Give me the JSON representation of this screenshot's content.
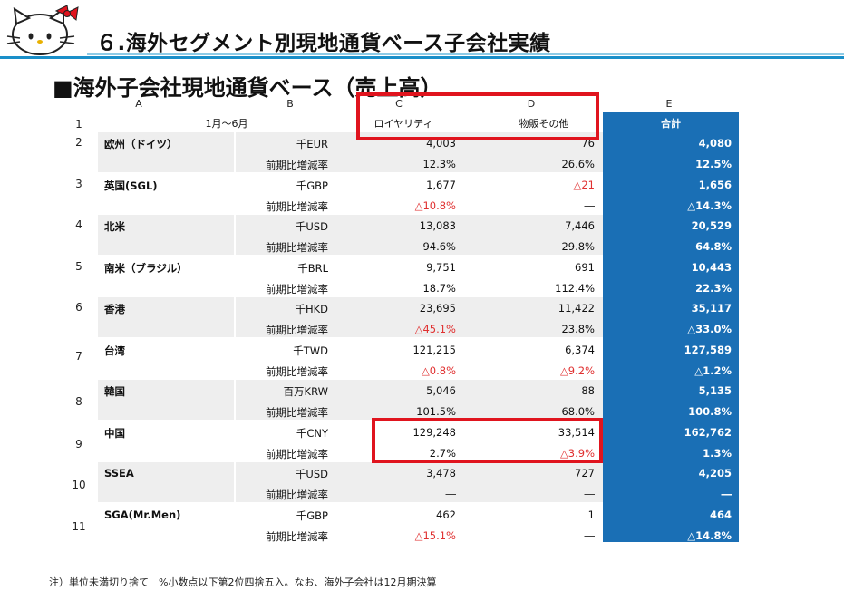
{
  "page": {
    "title": "６.海外セグメント別現地通貨ベース子会社実績",
    "section_title": "■海外子会社現地通貨ベース（売上高）",
    "footnote": "注）単位未満切り捨て　%小数点以下第2位四捨五入。なお、海外子会社は12月期決算"
  },
  "colors": {
    "accent_blue": "#1a6fb5",
    "negative": "#e03030",
    "highlight_box": "#e0141e",
    "title_rule": "#1a8fc9"
  },
  "table": {
    "column_letters": [
      "A",
      "B",
      "C",
      "D",
      "E"
    ],
    "header": {
      "period": "1月～6月",
      "col_c": "ロイヤリティ",
      "col_d": "物販その他",
      "col_e": "合計"
    },
    "row_numbers": [
      "1",
      "2",
      "3",
      "4",
      "5",
      "6",
      "7",
      "8",
      "9",
      "10",
      "11"
    ],
    "rows": [
      {
        "region": "欧州（ドイツ）",
        "unit": "千EUR",
        "c": "4,003",
        "d": "76",
        "e": "4,080",
        "rate_label": "前期比増減率",
        "rc": "12.3%",
        "rd": "26.6%",
        "re": "12.5%"
      },
      {
        "region": "英国(SGL)",
        "unit": "千GBP",
        "c": "1,677",
        "d": "△21",
        "e": "1,656",
        "rate_label": "前期比増減率",
        "rc": "△10.8%",
        "rd": "―",
        "re": "△14.3%"
      },
      {
        "region": "北米",
        "unit": "千USD",
        "c": "13,083",
        "d": "7,446",
        "e": "20,529",
        "rate_label": "前期比増減率",
        "rc": "94.6%",
        "rd": "29.8%",
        "re": "64.8%"
      },
      {
        "region": "南米（ブラジル）",
        "unit": "千BRL",
        "c": "9,751",
        "d": "691",
        "e": "10,443",
        "rate_label": "前期比増減率",
        "rc": "18.7%",
        "rd": "112.4%",
        "re": "22.3%"
      },
      {
        "region": "香港",
        "unit": "千HKD",
        "c": "23,695",
        "d": "11,422",
        "e": "35,117",
        "rate_label": "前期比増減率",
        "rc": "△45.1%",
        "rd": "23.8%",
        "re": "△33.0%"
      },
      {
        "region": "台湾",
        "unit": "千TWD",
        "c": "121,215",
        "d": "6,374",
        "e": "127,589",
        "rate_label": "前期比増減率",
        "rc": "△0.8%",
        "rd": "△9.2%",
        "re": "△1.2%"
      },
      {
        "region": "韓国",
        "unit": "百万KRW",
        "c": "5,046",
        "d": "88",
        "e": "5,135",
        "rate_label": "前期比増減率",
        "rc": "101.5%",
        "rd": "68.0%",
        "re": "100.8%"
      },
      {
        "region": "中国",
        "unit": "千CNY",
        "c": "129,248",
        "d": "33,514",
        "e": "162,762",
        "rate_label": "前期比増減率",
        "rc": "2.7%",
        "rd": "△3.9%",
        "re": "1.3%"
      },
      {
        "region": "SSEA",
        "unit": "千USD",
        "c": "3,478",
        "d": "727",
        "e": "4,205",
        "rate_label": "前期比増減率",
        "rc": "―",
        "rd": "―",
        "re": "―"
      },
      {
        "region": "SGA(Mr.Men)",
        "unit": "千GBP",
        "c": "462",
        "d": "1",
        "e": "464",
        "rate_label": "前期比増減率",
        "rc": "△15.1%",
        "rd": "―",
        "re": "△14.8%"
      }
    ]
  }
}
